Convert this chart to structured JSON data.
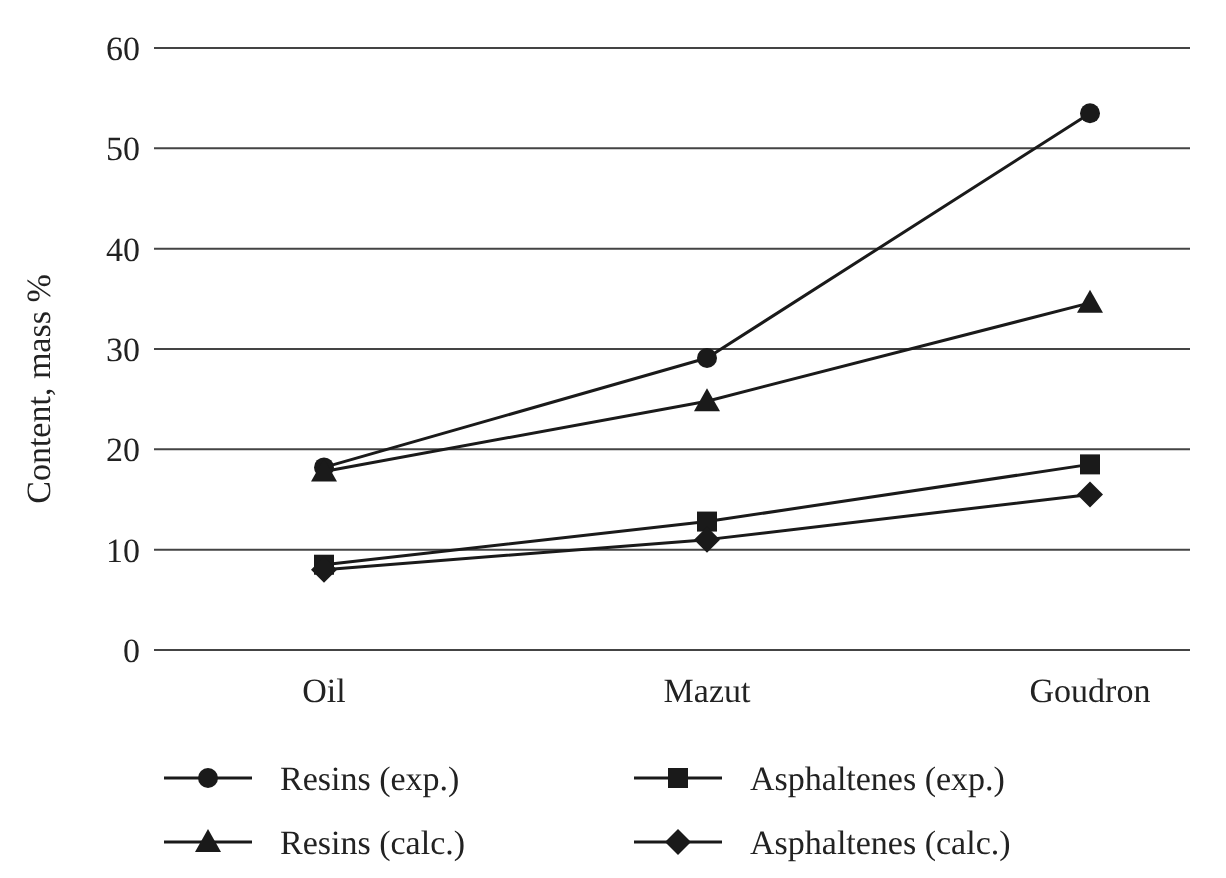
{
  "chart_data": {
    "type": "line",
    "ylabel": "Content, mass %",
    "categories": [
      "Oil",
      "Mazut",
      "Goudron"
    ],
    "ylim": [
      0,
      60
    ],
    "yticks": [
      0,
      10,
      20,
      30,
      40,
      50,
      60
    ],
    "grid": "y",
    "legend": "bottom",
    "series": [
      {
        "name": "Resins (exp.)",
        "color": "#1a1a1a",
        "marker": "circle",
        "values": [
          18.2,
          29.1,
          53.5
        ]
      },
      {
        "name": "Asphaltenes (exp.)",
        "color": "#1a1a1a",
        "marker": "square",
        "values": [
          8.5,
          12.8,
          18.5
        ]
      },
      {
        "name": "Resins (calc.)",
        "color": "#1a1a1a",
        "marker": "triangle",
        "values": [
          17.8,
          24.8,
          34.6
        ]
      },
      {
        "name": "Asphaltenes (calc.)",
        "color": "#1a1a1a",
        "marker": "diamond",
        "values": [
          8.0,
          11.0,
          15.5
        ]
      }
    ]
  }
}
